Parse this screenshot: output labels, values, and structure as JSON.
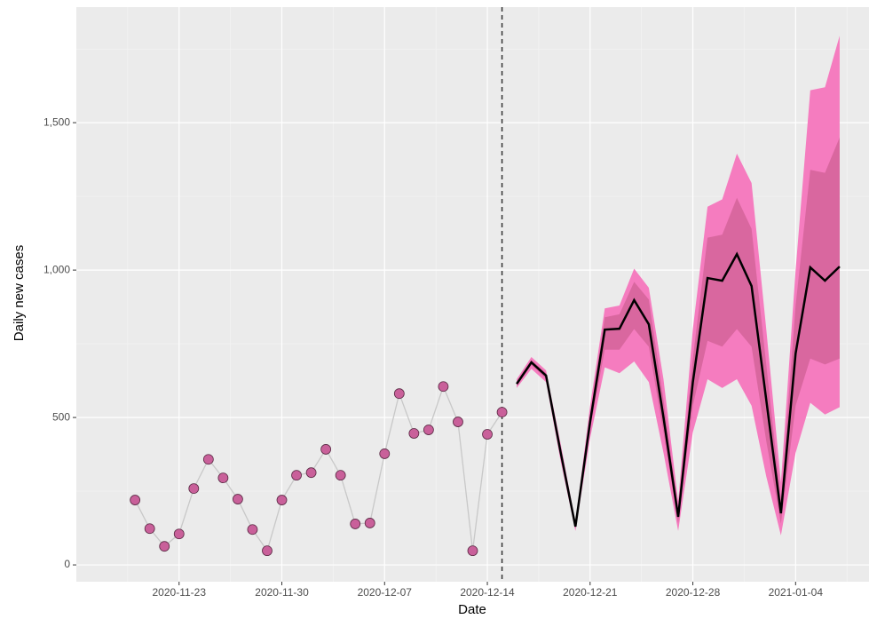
{
  "chart_data": {
    "type": "forecast",
    "xlabel": "Date",
    "ylabel": "Daily new cases",
    "xlim": [
      "2020-11-16",
      "2021-01-09"
    ],
    "xticks": [
      "2020-11-23",
      "2020-11-30",
      "2020-12-07",
      "2020-12-14",
      "2020-12-21",
      "2020-12-28",
      "2021-01-04"
    ],
    "ylim": [
      -57,
      1892
    ],
    "yticks": [
      0,
      500,
      {
        "value": 1000,
        "label": "1,000"
      },
      {
        "value": 1500,
        "label": "1,500"
      }
    ],
    "grid": true,
    "vline": "2020-12-15",
    "observed": {
      "color": "#c9609a",
      "line_color": "#c8c8c8",
      "x": [
        "2020-11-20",
        "2020-11-21",
        "2020-11-22",
        "2020-11-23",
        "2020-11-24",
        "2020-11-25",
        "2020-11-26",
        "2020-11-27",
        "2020-11-28",
        "2020-11-29",
        "2020-11-30",
        "2020-12-01",
        "2020-12-02",
        "2020-12-03",
        "2020-12-04",
        "2020-12-05",
        "2020-12-06",
        "2020-12-07",
        "2020-12-08",
        "2020-12-09",
        "2020-12-10",
        "2020-12-11",
        "2020-12-12",
        "2020-12-13",
        "2020-12-14",
        "2020-12-15"
      ],
      "values": [
        220,
        123,
        63,
        105,
        259,
        358,
        295,
        223,
        120,
        48,
        220,
        304,
        313,
        392,
        304,
        139,
        142,
        377,
        581,
        446,
        458,
        605,
        485,
        48,
        443,
        518
      ]
    },
    "forecast": {
      "color": "#000000",
      "band_95_color": "#f57cbf",
      "band_50_color": "#d9679f",
      "x": [
        "2020-12-16",
        "2020-12-17",
        "2020-12-18",
        "2020-12-19",
        "2020-12-20",
        "2020-12-21",
        "2020-12-22",
        "2020-12-23",
        "2020-12-24",
        "2020-12-25",
        "2020-12-26",
        "2020-12-27",
        "2020-12-28",
        "2020-12-29",
        "2020-12-30",
        "2020-12-31",
        "2021-01-01",
        "2021-01-02",
        "2021-01-03",
        "2021-01-04",
        "2021-01-05",
        "2021-01-06",
        "2021-01-07"
      ],
      "median": [
        614,
        687,
        642,
        380,
        130,
        485,
        798,
        801,
        898,
        816,
        500,
        163,
        620,
        973,
        964,
        1054,
        946,
        560,
        175,
        717,
        1009,
        964,
        1012
      ],
      "upper_95": [
        630,
        705,
        660,
        410,
        145,
        540,
        870,
        880,
        1005,
        940,
        630,
        215,
        800,
        1215,
        1240,
        1395,
        1295,
        800,
        280,
        1000,
        1610,
        1620,
        1795
      ],
      "lower_95": [
        600,
        665,
        620,
        350,
        115,
        430,
        670,
        650,
        690,
        620,
        380,
        115,
        450,
        630,
        600,
        630,
        540,
        300,
        100,
        380,
        550,
        510,
        535
      ],
      "upper_50": [
        620,
        695,
        650,
        395,
        137,
        510,
        840,
        850,
        960,
        900,
        560,
        190,
        700,
        1110,
        1120,
        1245,
        1140,
        680,
        220,
        880,
        1340,
        1330,
        1450
      ],
      "lower_50": [
        608,
        678,
        632,
        370,
        125,
        460,
        730,
        730,
        800,
        740,
        450,
        140,
        540,
        760,
        740,
        800,
        740,
        420,
        140,
        540,
        700,
        680,
        700
      ]
    }
  }
}
